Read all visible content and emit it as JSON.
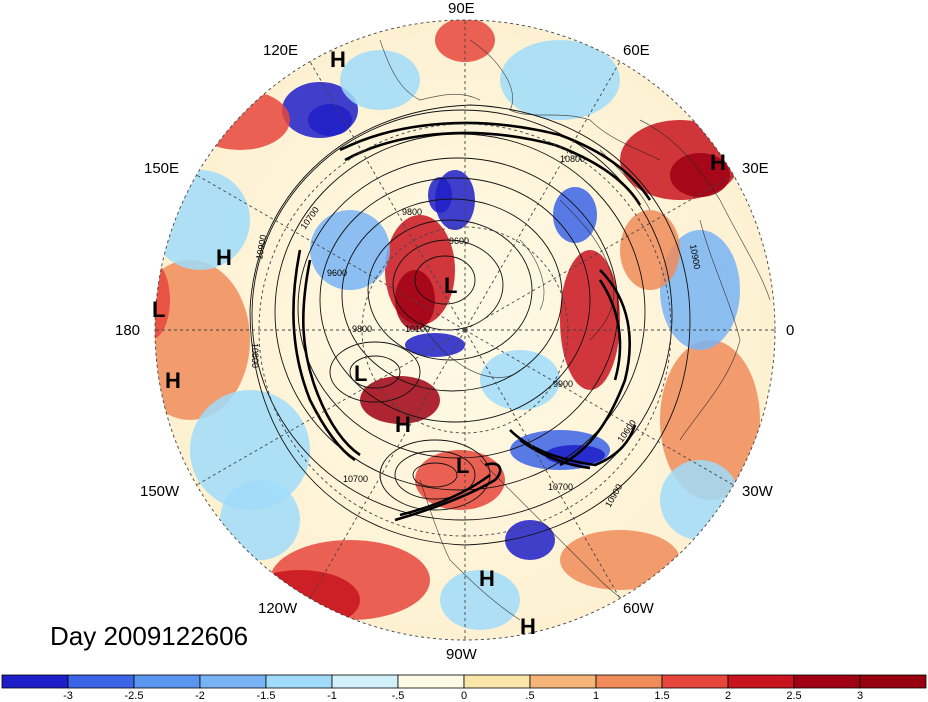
{
  "map": {
    "projection": "north-polar-stereographic",
    "day_label": "Day 2009122606",
    "longitude_labels": [
      {
        "text": "90E",
        "lon": 90
      },
      {
        "text": "60E",
        "lon": 60
      },
      {
        "text": "30E",
        "lon": 30
      },
      {
        "text": "0",
        "lon": 0
      },
      {
        "text": "30W",
        "lon": -30
      },
      {
        "text": "60W",
        "lon": -60
      },
      {
        "text": "90W",
        "lon": -90
      },
      {
        "text": "120W",
        "lon": -120
      },
      {
        "text": "150W",
        "lon": -150
      },
      {
        "text": "180",
        "lon": 180
      },
      {
        "text": "150E",
        "lon": 150
      },
      {
        "text": "120E",
        "lon": 120
      }
    ],
    "pressure_markers": [
      "H",
      "H",
      "H",
      "H",
      "H",
      "H",
      "H",
      "L",
      "L",
      "L",
      "L"
    ],
    "contour_labels": [
      "9800",
      "9600",
      "9600",
      "9800",
      "10700",
      "10700",
      "10900",
      "10900",
      "10800",
      "9900",
      "10600",
      "10700",
      "10900",
      "10100",
      "10800"
    ],
    "colors": {
      "anomaly_palette": [
        "#1e1ec8",
        "#3c64e6",
        "#5a96f0",
        "#78b4f5",
        "#a0dcfa",
        "#d2f0fa",
        "#fffae6",
        "#fae6aa",
        "#f5b478",
        "#f08c5a",
        "#e6463c",
        "#c8141e",
        "#a00014"
      ]
    }
  },
  "colorbar": {
    "tick_labels": [
      "-3",
      "-2.5",
      "-2",
      "-1.5",
      "-1",
      "-.5",
      "0",
      ".5",
      "1",
      "1.5",
      "2",
      "2.5",
      "3"
    ],
    "colors": [
      "#1e1ec8",
      "#3c64e6",
      "#5a96f0",
      "#78b4f5",
      "#a0dcfa",
      "#d2f0fa",
      "#fffae6",
      "#fae6aa",
      "#f5b478",
      "#f08c5a",
      "#e6463c",
      "#c8141e",
      "#a00014",
      "#96000f"
    ]
  }
}
